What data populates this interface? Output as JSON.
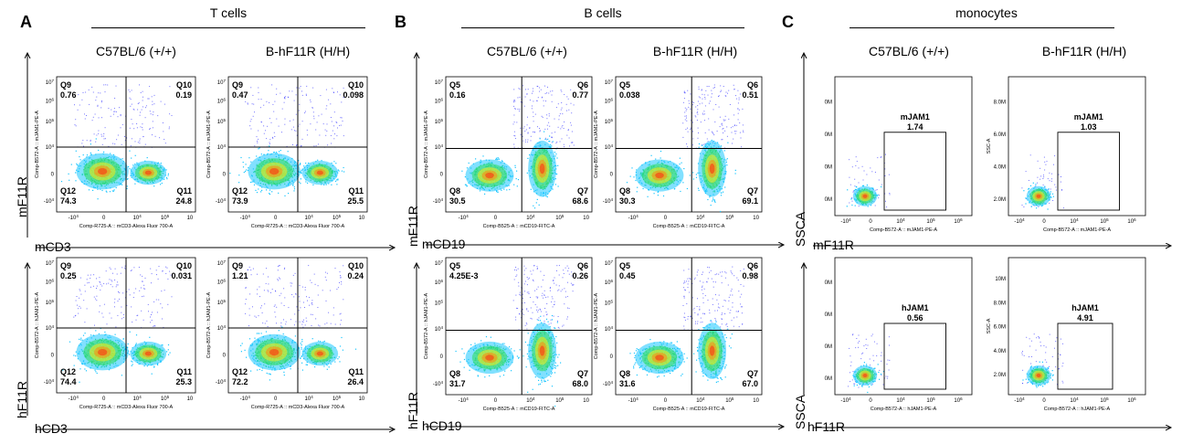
{
  "panels": [
    {
      "letter": "A",
      "title": "T cells"
    },
    {
      "letter": "B",
      "title": "B cells"
    },
    {
      "letter": "C",
      "title": "monocytes"
    }
  ],
  "column_titles": {
    "A": [
      "C57BL/6 (+/+)",
      "B-hF11R (H/H)"
    ],
    "B": [
      "C57BL/6 (+/+)",
      "B-hF11R (H/H)"
    ],
    "C": [
      "C57BL/6 (+/+)",
      "B-hF11R (H/H)"
    ]
  },
  "big_axis_labels": {
    "A": {
      "top_y": "mF11R",
      "top_x": "mCD3",
      "bottom_y": "hF11R",
      "bottom_x": "hCD3"
    },
    "B": {
      "top_y": "mF11R",
      "top_x": "mCD19",
      "bottom_y": "hF11R",
      "bottom_x": "hCD19"
    },
    "C": {
      "top_y": "SSCA",
      "top_x": "mF11R",
      "bottom_y": "SSCA",
      "bottom_x": "hF11R"
    }
  },
  "quadrant_axis_ticks": {
    "x": [
      "-10",
      "0",
      "10",
      "10",
      "10"
    ],
    "x_exp": [
      "4",
      "",
      "4",
      "5",
      ""
    ],
    "y": [
      "10",
      "10",
      "10",
      "10",
      "0",
      "-10"
    ],
    "y_exp": [
      "7",
      "6",
      "5",
      "4",
      "",
      "4"
    ]
  },
  "gate_axis_ticks": {
    "x": [
      "-10",
      "0",
      "10",
      "10",
      "10"
    ],
    "x_exp": [
      "4",
      "",
      "4",
      "5",
      "6"
    ]
  },
  "chart_data": [
    {
      "type": "scatter",
      "panel": "A",
      "strain": "C57BL/6 (+/+)",
      "marker": "mF11R",
      "xlabel": "Comp-R725-A :: mCD3-Alexa Fluor 700-A",
      "ylabel": "Comp-B572-A :: mJAM1-PE-A",
      "quadrants": [
        {
          "name": "Q9",
          "value": "0.76"
        },
        {
          "name": "Q10",
          "value": "0.19"
        },
        {
          "name": "Q11",
          "value": "24.8"
        },
        {
          "name": "Q12",
          "value": "74.3"
        }
      ]
    },
    {
      "type": "scatter",
      "panel": "A",
      "strain": "B-hF11R (H/H)",
      "marker": "mF11R",
      "xlabel": "Comp-R725-A :: mCD3-Alexa Fluor 700-A",
      "ylabel": "Comp-B572-A :: mJAM1-PE-A",
      "quadrants": [
        {
          "name": "Q9",
          "value": "0.47"
        },
        {
          "name": "Q10",
          "value": "0.098"
        },
        {
          "name": "Q11",
          "value": "25.5"
        },
        {
          "name": "Q12",
          "value": "73.9"
        }
      ]
    },
    {
      "type": "scatter",
      "panel": "A",
      "strain": "C57BL/6 (+/+)",
      "marker": "hF11R",
      "xlabel": "Comp-R725-A :: mCD3-Alexa Fluor 700-A",
      "ylabel": "Comp-B572-A :: hJAM1-PE-A",
      "quadrants": [
        {
          "name": "Q9",
          "value": "0.25"
        },
        {
          "name": "Q10",
          "value": "0.031"
        },
        {
          "name": "Q11",
          "value": "25.3"
        },
        {
          "name": "Q12",
          "value": "74.4"
        }
      ]
    },
    {
      "type": "scatter",
      "panel": "A",
      "strain": "B-hF11R (H/H)",
      "marker": "hF11R",
      "xlabel": "Comp-R725-A :: mCD3-Alexa Fluor 700-A",
      "ylabel": "Comp-B572-A :: hJAM1-PE-A",
      "quadrants": [
        {
          "name": "Q9",
          "value": "1.21"
        },
        {
          "name": "Q10",
          "value": "0.24"
        },
        {
          "name": "Q11",
          "value": "26.4"
        },
        {
          "name": "Q12",
          "value": "72.2"
        }
      ]
    },
    {
      "type": "scatter",
      "panel": "B",
      "strain": "C57BL/6 (+/+)",
      "marker": "mF11R",
      "xlabel": "Comp-B525-A :: mCD19-FITC-A",
      "ylabel": "Comp-B572-A :: mJAM1-PE-A",
      "quadrants": [
        {
          "name": "Q5",
          "value": "0.16"
        },
        {
          "name": "Q6",
          "value": "0.77"
        },
        {
          "name": "Q7",
          "value": "68.6"
        },
        {
          "name": "Q8",
          "value": "30.5"
        }
      ]
    },
    {
      "type": "scatter",
      "panel": "B",
      "strain": "B-hF11R (H/H)",
      "marker": "mF11R",
      "xlabel": "Comp-B525-A :: mCD19-FITC-A",
      "ylabel": "Comp-B572-A :: mJAM1-PE-A",
      "quadrants": [
        {
          "name": "Q5",
          "value": "0.038"
        },
        {
          "name": "Q6",
          "value": "0.51"
        },
        {
          "name": "Q7",
          "value": "69.1"
        },
        {
          "name": "Q8",
          "value": "30.3"
        }
      ]
    },
    {
      "type": "scatter",
      "panel": "B",
      "strain": "C57BL/6 (+/+)",
      "marker": "hF11R",
      "xlabel": "Comp-B525-A :: mCD19-FITC-A",
      "ylabel": "Comp-B572-A :: hJAM1-PE-A",
      "quadrants": [
        {
          "name": "Q5",
          "value": "4.25E-3"
        },
        {
          "name": "Q6",
          "value": "0.26"
        },
        {
          "name": "Q7",
          "value": "68.0"
        },
        {
          "name": "Q8",
          "value": "31.7"
        }
      ]
    },
    {
      "type": "scatter",
      "panel": "B",
      "strain": "B-hF11R (H/H)",
      "marker": "hF11R",
      "xlabel": "Comp-B525-A :: mCD19-FITC-A",
      "ylabel": "Comp-B572-A :: hJAM1-PE-A",
      "quadrants": [
        {
          "name": "Q5",
          "value": "0.45"
        },
        {
          "name": "Q6",
          "value": "0.98"
        },
        {
          "name": "Q7",
          "value": "67.0"
        },
        {
          "name": "Q8",
          "value": "31.6"
        }
      ]
    },
    {
      "type": "scatter",
      "panel": "C",
      "strain": "C57BL/6 (+/+)",
      "marker": "mF11R",
      "xlabel": "Comp-B572-A :: mJAM1-PE-A",
      "ylabel": "",
      "y_ticks": [
        "0M",
        "0M",
        "0M",
        "0M"
      ],
      "gate": {
        "name": "mJAM1",
        "value": "1.74"
      }
    },
    {
      "type": "scatter",
      "panel": "C",
      "strain": "B-hF11R (H/H)",
      "marker": "mF11R",
      "xlabel": "Comp-B572-A :: mJAM1-PE-A",
      "ylabel": "SSC-A",
      "y_ticks": [
        "8.0M",
        "6.0M",
        "4.0M",
        "2.0M"
      ],
      "gate": {
        "name": "mJAM1",
        "value": "1.03"
      }
    },
    {
      "type": "scatter",
      "panel": "C",
      "strain": "C57BL/6 (+/+)",
      "marker": "hF11R",
      "xlabel": "Comp-B572-A :: hJAM1-PE-A",
      "ylabel": "",
      "y_ticks": [
        "0M",
        "0M",
        "0M",
        "0M"
      ],
      "gate": {
        "name": "hJAM1",
        "value": "0.56"
      }
    },
    {
      "type": "scatter",
      "panel": "C",
      "strain": "B-hF11R (H/H)",
      "marker": "hF11R",
      "xlabel": "Comp-B572-A :: hJAM1-PE-A",
      "ylabel": "SSC-A",
      "y_ticks": [
        "10M",
        "8.0M",
        "6.0M",
        "4.0M",
        "2.0M"
      ],
      "gate": {
        "name": "hJAM1",
        "value": "4.91"
      }
    }
  ]
}
